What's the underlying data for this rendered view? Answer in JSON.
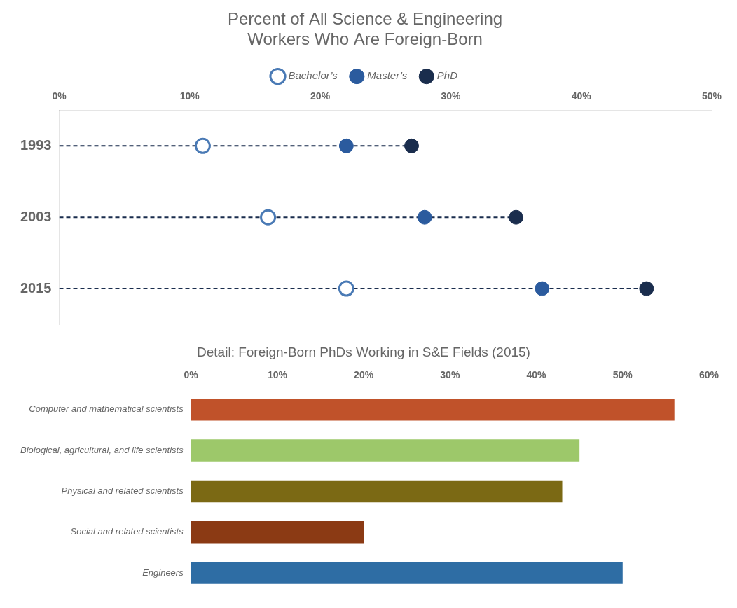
{
  "chart_data": [
    {
      "type": "dot",
      "title": "Percent of All Science & Engineering\nWorkers Who Are Foreign-Born",
      "categories": [
        "1993",
        "2003",
        "2015"
      ],
      "orientation": "horizontal",
      "marker": "circle",
      "series": [
        {
          "name": "Bachelor’s",
          "color": "#4a7ab5",
          "marker": "hollow",
          "values": [
            11,
            16,
            22
          ]
        },
        {
          "name": "Master’s",
          "color": "#2b5b9e",
          "values": [
            22,
            28,
            37
          ]
        },
        {
          "name": "PhD",
          "color": "#1a2d4d",
          "line_style": "dashed",
          "values": [
            27,
            35,
            45
          ]
        }
      ],
      "xlim": [
        0,
        50
      ],
      "xticks": [
        {
          "value": 0,
          "label": "0%"
        },
        {
          "value": 10,
          "label": "10%"
        },
        {
          "value": 20,
          "label": "20%"
        },
        {
          "value": 30,
          "label": "30%"
        },
        {
          "value": 40,
          "label": "40%"
        },
        {
          "value": 50,
          "label": "50%"
        }
      ],
      "grid": false,
      "legend": "top"
    },
    {
      "type": "bar",
      "title": "Detail: Foreign-Born PhDs Working in S&E Fields (2015)",
      "orientation": "horizontal",
      "categories": [
        "Computer and mathematical scientists",
        "Biological, agricultural, and life scientists",
        "Physical and related scientists",
        "Social and related scientists",
        "Engineers"
      ],
      "values": [
        56,
        45,
        43,
        20,
        50
      ],
      "colors": [
        "#c0522a",
        "#9dc86a",
        "#7b6914",
        "#8b3a14",
        "#2e6da4"
      ],
      "xlim": [
        0,
        60
      ],
      "xticks": [
        {
          "value": 0,
          "label": "0%"
        },
        {
          "value": 10,
          "label": "10%"
        },
        {
          "value": 20,
          "label": "20%"
        },
        {
          "value": 30,
          "label": "30%"
        },
        {
          "value": 40,
          "label": "40%"
        },
        {
          "value": 50,
          "label": "50%"
        },
        {
          "value": 60,
          "label": "60%"
        }
      ],
      "grid": false
    }
  ]
}
